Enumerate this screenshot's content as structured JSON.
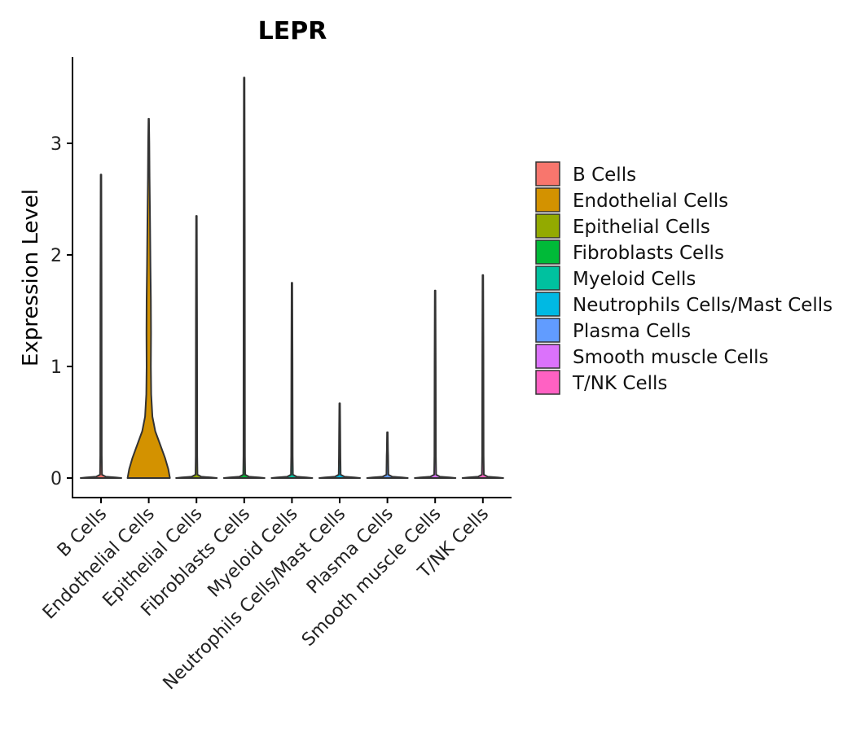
{
  "chart_data": {
    "type": "violin",
    "title": "LEPR",
    "xlabel": "",
    "ylabel": "Expression Level",
    "ylim": [
      -0.18,
      3.8
    ],
    "yticks": [
      0,
      1,
      2,
      3
    ],
    "ytick_labels": [
      "0",
      "1",
      "2",
      "3"
    ],
    "categories": [
      "B Cells",
      "Endothelial Cells",
      "Epithelial Cells",
      "Fibroblasts Cells",
      "Myeloid Cells",
      "Neutrophils Cells/Mast Cells",
      "Plasma Cells",
      "Smooth muscle Cells",
      "T/NK Cells"
    ],
    "colors": [
      "#F8766D",
      "#D39200",
      "#93AA00",
      "#00BA38",
      "#00C19F",
      "#00B9E3",
      "#619CFF",
      "#DB72FB",
      "#FF61C3"
    ],
    "max_values": [
      2.72,
      3.22,
      2.35,
      3.59,
      1.75,
      0.67,
      0.41,
      1.68,
      1.82
    ],
    "legend": {
      "position": "right",
      "entries": [
        "B Cells",
        "Endothelial Cells",
        "Epithelial Cells",
        "Fibroblasts Cells",
        "Myeloid Cells",
        "Neutrophils Cells/Mast Cells",
        "Plasma Cells",
        "Smooth muscle Cells",
        "T/NK Cells"
      ]
    }
  }
}
